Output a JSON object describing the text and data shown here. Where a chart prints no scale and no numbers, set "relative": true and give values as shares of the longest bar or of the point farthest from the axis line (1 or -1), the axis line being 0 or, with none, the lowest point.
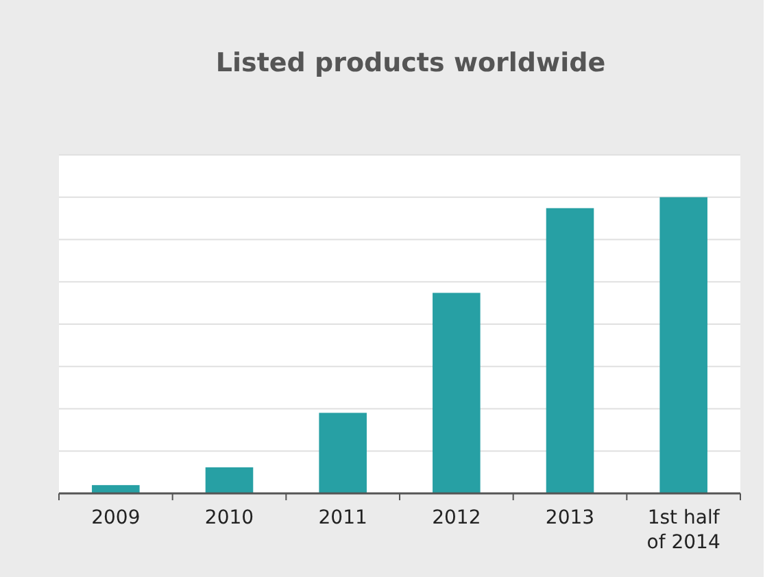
{
  "chart_data": {
    "type": "bar",
    "title": "Listed products worldwide",
    "categories": [
      "2009",
      "2010",
      "2011",
      "2012",
      "2013",
      "1st half of 2014"
    ],
    "values": [
      0.028,
      0.088,
      0.272,
      0.677,
      0.963,
      1
    ],
    "color": "#27a0a4",
    "relative": true,
    "grid": "y"
  }
}
